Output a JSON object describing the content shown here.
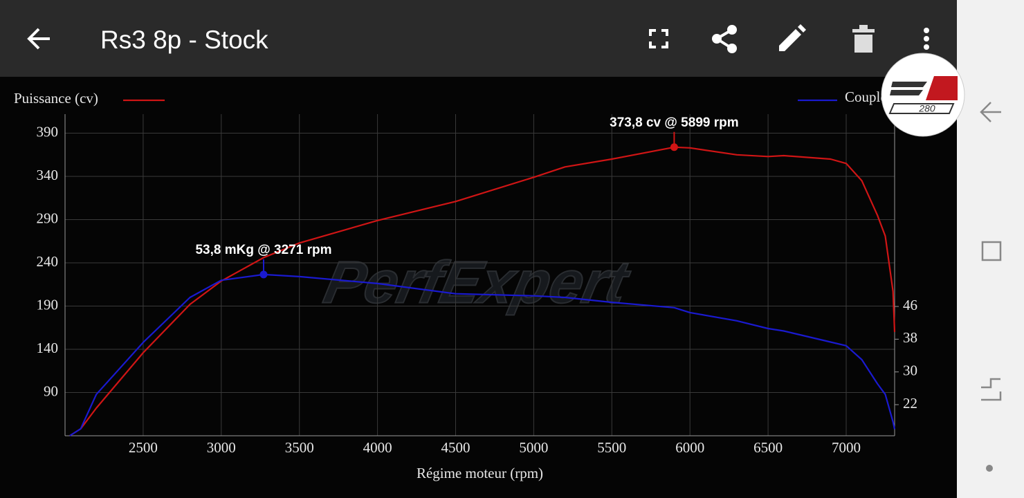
{
  "header": {
    "title": "Rs3 8p - Stock"
  },
  "logo": {
    "text": "280"
  },
  "chart_data": {
    "type": "line",
    "x_label": "Régime moteur (rpm)",
    "watermark": "PerfExpert",
    "x": [
      2030,
      2100,
      2200,
      2500,
      2800,
      3000,
      3271,
      3500,
      4000,
      4500,
      5000,
      5200,
      5500,
      5899,
      6000,
      6300,
      6500,
      6600,
      6900,
      7000,
      7100,
      7200,
      7250,
      7300,
      7310
    ],
    "series": [
      {
        "name": "Puissance (cv)",
        "color": "#d01515",
        "axis": "y",
        "values": [
          40,
          48,
          72,
          136,
          192,
          219,
          246,
          263,
          289,
          311,
          339,
          351,
          360,
          373.8,
          373,
          365,
          363,
          364,
          360,
          355,
          335,
          295,
          271,
          207,
          160
        ]
      },
      {
        "name": "Couple",
        "color": "#1a1ad0",
        "axis": "y2",
        "values": [
          14.4,
          16.1,
          24.5,
          37.2,
          48.2,
          52.4,
          53.8,
          53.3,
          51.6,
          49.1,
          48.6,
          48.2,
          47.0,
          45.7,
          44.5,
          42.5,
          40.6,
          40,
          37.3,
          36.4,
          33,
          27.1,
          24.5,
          17.8,
          16
        ]
      }
    ],
    "annotations": [
      {
        "text": "373,8 cv @ 5899 rpm",
        "x": 5899,
        "y": 373.8,
        "series": 0
      },
      {
        "text": "53,8 mKg @ 3271 rpm",
        "x": 3271,
        "y": 53.8,
        "series": 1
      }
    ],
    "xlim": [
      2000,
      7310
    ],
    "xticks": [
      2500,
      3000,
      3500,
      4000,
      4500,
      5000,
      5500,
      6000,
      6500,
      7000
    ],
    "ylim": [
      40,
      412
    ],
    "yticks": [
      90,
      140,
      190,
      240,
      290,
      340,
      390
    ],
    "y2lim": [
      14.4,
      93
    ],
    "y2ticks": [
      22,
      30,
      38,
      46
    ],
    "grid": true
  }
}
